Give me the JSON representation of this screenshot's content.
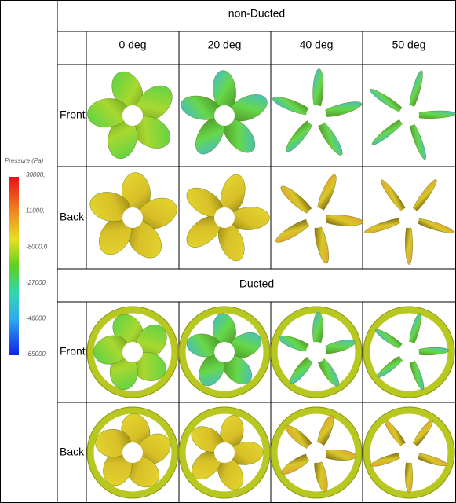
{
  "legend": {
    "title": "Pressure (Pa)",
    "ticks": [
      "30000,",
      "11000,",
      "-8000,0",
      "-27000,",
      "-46000,",
      "-65000,"
    ]
  },
  "table": {
    "columns": [
      "0 deg",
      "20 deg",
      "40 deg",
      "50 deg"
    ],
    "sections": [
      {
        "title": "non-Ducted",
        "rows": [
          "Front",
          "Back"
        ]
      },
      {
        "title": "Ducted",
        "rows": [
          "Front",
          "Back"
        ]
      }
    ]
  }
}
